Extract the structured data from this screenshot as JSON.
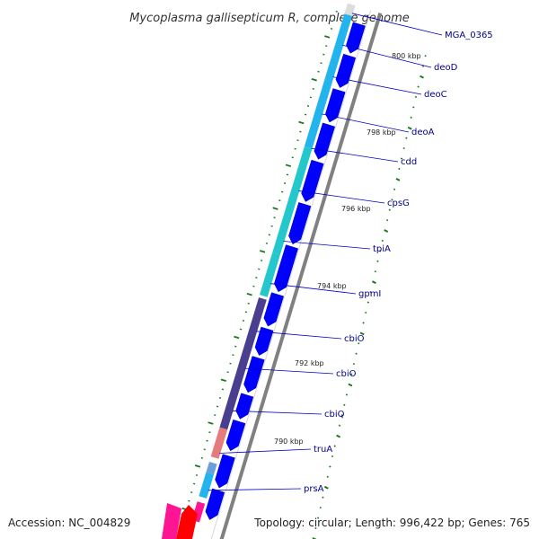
{
  "title": "Mycoplasma gallisepticum R, complete genome",
  "footer": {
    "accession": "Accession: NC_004829",
    "summary": "Topology: circular; Length: 996,422 bp; Genes: 765"
  },
  "colors": {
    "cds": "#0000ff",
    "tick": "#1a7a1a",
    "label_line": "#0000cc",
    "label_text": "#00008b",
    "backbone": "#808080",
    "cog_sky": "#23b4ee",
    "cog_teal": "#24c8cc",
    "cog_indigo": "#4a3f8e",
    "cog_salmon": "#e57b7b",
    "cog_magenta": "#ff1493",
    "cog_red": "#ff0000"
  },
  "scale_labels": [
    "800 kbp",
    "798 kbp",
    "796 kbp",
    "794 kbp",
    "792 kbp",
    "790 kbp"
  ],
  "genes": [
    {
      "name": "MGA_0365",
      "pos": 0.015
    },
    {
      "name": "deoD",
      "pos": 0.075
    },
    {
      "name": "deoC",
      "pos": 0.135
    },
    {
      "name": "deoA",
      "pos": 0.205
    },
    {
      "name": "cdd",
      "pos": 0.27
    },
    {
      "name": "cpsG",
      "pos": 0.35
    },
    {
      "name": "tpiA",
      "pos": 0.445
    },
    {
      "name": "gpmI",
      "pos": 0.525
    },
    {
      "name": "cbiO",
      "pos": 0.615
    },
    {
      "name": "cbiO",
      "pos": 0.685
    },
    {
      "name": "cbiQ",
      "pos": 0.765
    },
    {
      "name": "truA",
      "pos": 0.845
    },
    {
      "name": "prsA",
      "pos": 0.915
    }
  ]
}
